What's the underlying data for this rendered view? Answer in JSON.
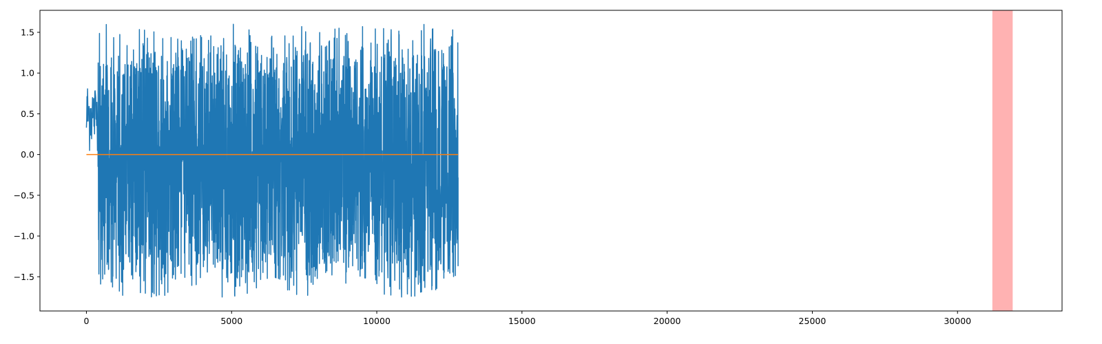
{
  "chart_data": {
    "type": "line",
    "title": "",
    "xlabel": "",
    "ylabel": "",
    "xlim": [
      -1600,
      33600
    ],
    "ylim": [
      -1.92,
      1.77
    ],
    "x_ticks": [
      0,
      5000,
      10000,
      15000,
      20000,
      25000,
      30000
    ],
    "x_tick_labels": [
      "0",
      "5000",
      "10000",
      "15000",
      "20000",
      "25000",
      "30000"
    ],
    "y_ticks": [
      -1.5,
      -1.0,
      -0.5,
      0.0,
      0.5,
      1.0,
      1.5
    ],
    "y_tick_labels": [
      "−1.5",
      "−1.0",
      "−0.5",
      "0.0",
      "0.5",
      "1.0",
      "1.5"
    ],
    "grid": false,
    "legend": "none",
    "series": [
      {
        "color": "#1f77b4",
        "x_start": 0,
        "x_end": 12800,
        "segments": [
          {
            "x": [
              0,
              400
            ],
            "y_min": 0.05,
            "y_max": 0.95,
            "start_y": 0.33
          },
          {
            "x": [
              400,
              12800
            ],
            "y_min": -1.75,
            "y_max": 1.6,
            "typical_min": -1.45,
            "typical_max": 1.2,
            "end_y": -1.37
          }
        ]
      },
      {
        "color": "#ff7f0e",
        "x_start": 0,
        "x_end": 12800,
        "y": 0.0
      }
    ],
    "shaded_regions": [
      {
        "x_start": 31200,
        "x_end": 31900,
        "color": "#ff0000",
        "alpha": 0.3
      }
    ]
  }
}
